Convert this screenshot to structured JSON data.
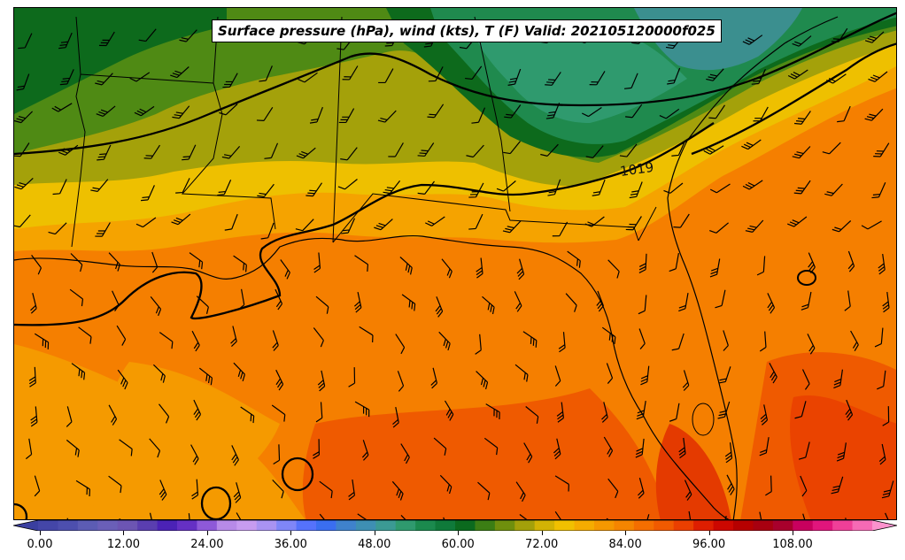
{
  "title": "Surface pressure (hPa), wind (kts), T (F) Valid: 202105120000f025",
  "isobar_label": "1019",
  "colorbar": {
    "min": -6,
    "max": 122,
    "step": 3,
    "tick_values": [
      0,
      12,
      24,
      36,
      48,
      60,
      72,
      84,
      96,
      108
    ],
    "tick_labels": [
      "0.00",
      "12.00",
      "24.00",
      "36.00",
      "48.00",
      "60.00",
      "72.00",
      "84.00",
      "96.00",
      "108.00"
    ],
    "colors": [
      "#3a3fa0",
      "#4446a8",
      "#4d4fae",
      "#5c5cb4",
      "#6a5fb8",
      "#6c55b3",
      "#5a3eb0",
      "#4b22b6",
      "#6530c4",
      "#8e59d8",
      "#b78ae8",
      "#c79cf0",
      "#a993f2",
      "#7f86f8",
      "#5572fb",
      "#3a6ef0",
      "#3f82cc",
      "#3e8fb3",
      "#3b9a94",
      "#2f9a6e",
      "#1b8a4e",
      "#0f7a3a",
      "#0b6a1e",
      "#3b7e14",
      "#6f8f0d",
      "#a3a00a",
      "#d2b304",
      "#f1c000",
      "#f5ac00",
      "#f59800",
      "#f58500",
      "#f46e00",
      "#f05a00",
      "#ea3f00",
      "#de1e00",
      "#cc0700",
      "#b60000",
      "#a80010",
      "#a8002c",
      "#c8005e",
      "#e0157c",
      "#ef3f98",
      "#f66ab5",
      "#fb92cd"
    ]
  },
  "temperature_regions_F": [
    {
      "name": "upper-left-cool",
      "value": 58
    },
    {
      "name": "northeast-coolest",
      "value": 47
    },
    {
      "name": "gulf-warm",
      "value": 73
    },
    {
      "name": "florida-hot",
      "value": 78
    },
    {
      "name": "atlantic-hot",
      "value": 79
    }
  ]
}
